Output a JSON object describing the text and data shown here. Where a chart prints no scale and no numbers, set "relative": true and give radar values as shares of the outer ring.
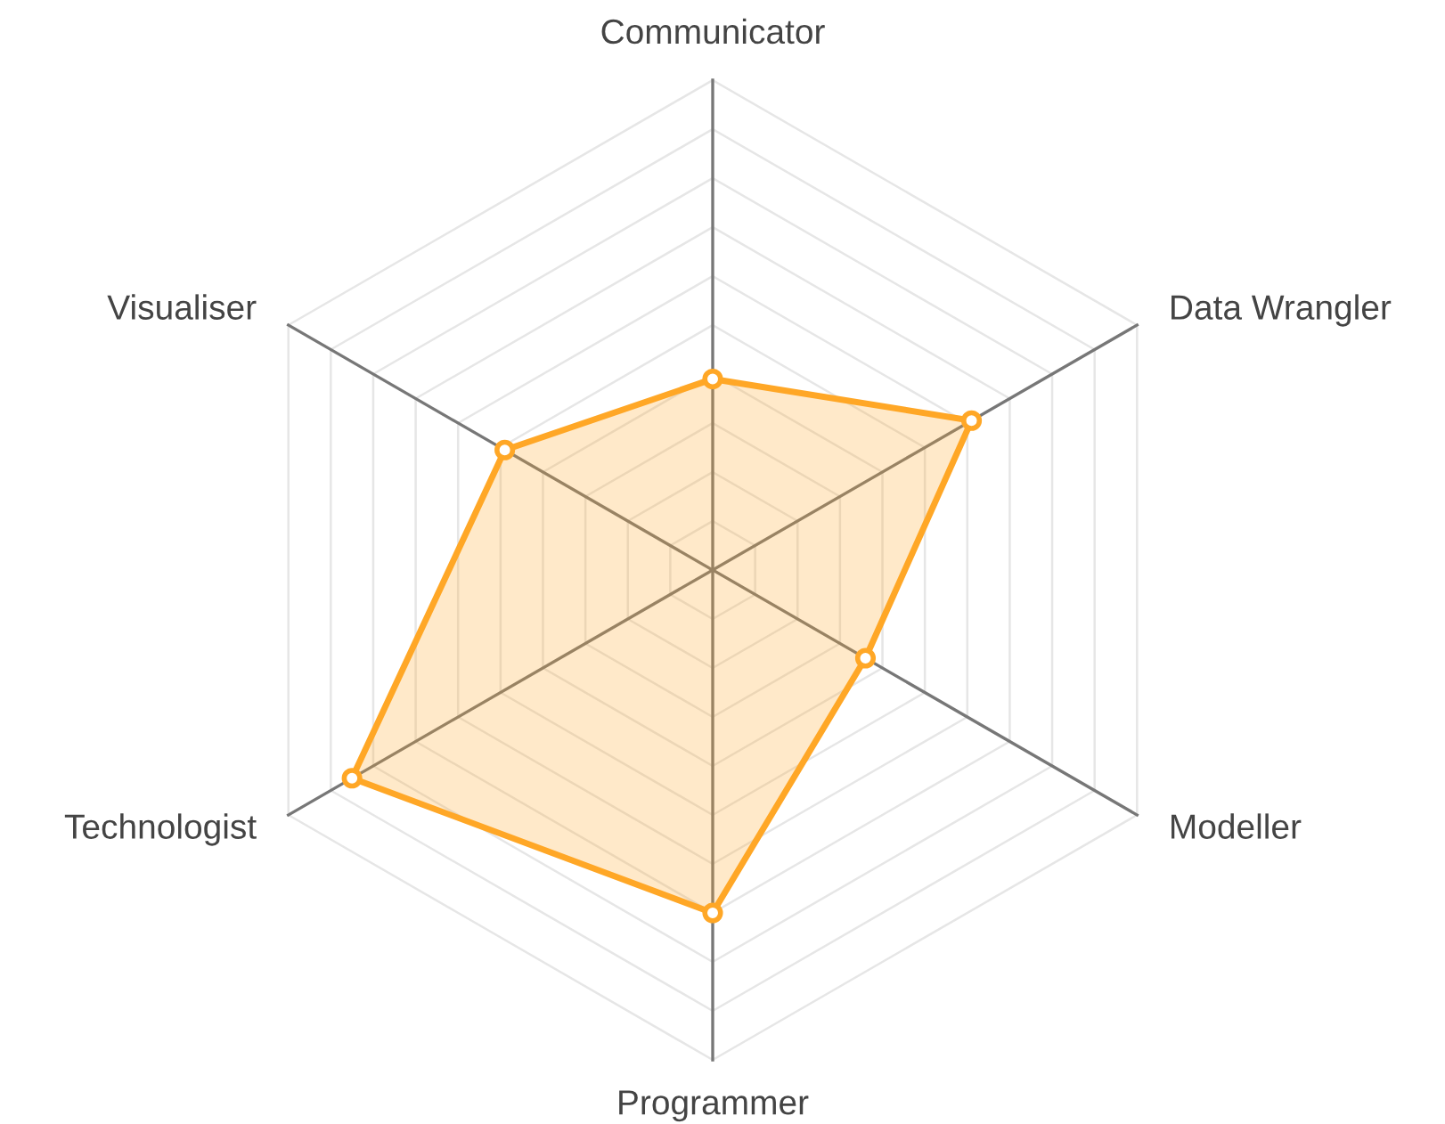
{
  "chart_data": {
    "type": "radar",
    "relative": true,
    "grid": true,
    "marker": "circle",
    "categories": [
      "Communicator",
      "Data Wrangler",
      "Modeller",
      "Programmer",
      "Technologist",
      "Visualiser"
    ],
    "series": [
      {
        "color": "#ffa726",
        "values": [
          0.39,
          0.61,
          0.36,
          0.7,
          0.85,
          0.49
        ]
      }
    ]
  }
}
